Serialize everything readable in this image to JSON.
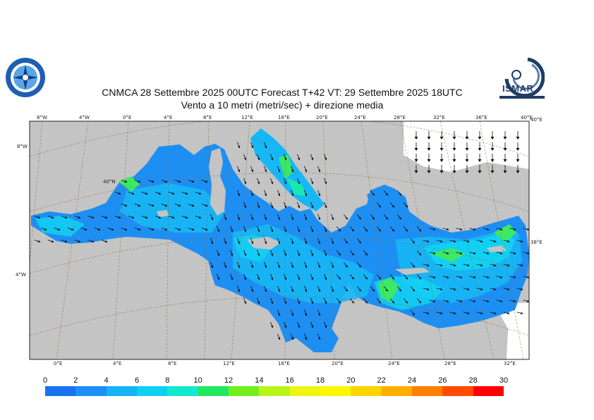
{
  "title_line1": "CNMCA 28 Settembre 2025 00UTC Forecast T+42 VT: 29 Settembre 2025 18UTC",
  "title_line2": "Vento a 10 metri (metri/sec) + direzione media",
  "logo_right_text": "ISMAR",
  "top_ticks": [
    "8°W",
    "4°W",
    "0°E",
    "4°E",
    "8°E",
    "12°E",
    "16°E",
    "20°E",
    "24°E",
    "28°E",
    "32°E",
    "36°E",
    "40°E"
  ],
  "bottom_ticks": [
    "0°E",
    "4°E",
    "8°E",
    "12°E",
    "16°E",
    "20°E",
    "24°E",
    "28°E",
    "32°E"
  ],
  "left_ticks": [
    "8°W",
    "4°W"
  ],
  "right_ticks": [
    "40°E",
    "38°E"
  ],
  "lat_label": "40°N",
  "colorbar": {
    "labels": [
      "0",
      "2",
      "4",
      "6",
      "8",
      "10",
      "12",
      "14",
      "16",
      "18",
      "20",
      "22",
      "24",
      "26",
      "28",
      "30"
    ],
    "colors": [
      "#1a73ee",
      "#1e90f5",
      "#17b3f7",
      "#10cff5",
      "#14e8d0",
      "#22e860",
      "#72ef1c",
      "#b8f41a",
      "#eef413",
      "#fff700",
      "#ffd400",
      "#ffae00",
      "#ff7f00",
      "#ff4b00",
      "#ff0000",
      "#ff1f8a"
    ]
  },
  "map_colors": {
    "land": "#c4c4c4",
    "sea_base": "#1e8ff2",
    "sea_mid": "#17b7f5",
    "sea_light": "#12d3f2",
    "sea_green": "#1ae8b0",
    "sea_bright": "#3ee865"
  }
}
